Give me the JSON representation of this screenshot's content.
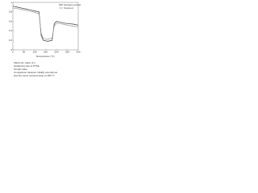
{
  "chart_data": {
    "type": "line",
    "x_label": "Temperature (°C)",
    "x": [
      0,
      20,
      40,
      60,
      80,
      100,
      120,
      130,
      140,
      160,
      180,
      190,
      200,
      220,
      240,
      260,
      280,
      300
    ],
    "series": [
      {
        "name": "Isotropic amorphous",
        "color": "#333333",
        "values": [
          0.92,
          0.9,
          0.88,
          0.86,
          0.84,
          0.82,
          0.8,
          0.3,
          0.2,
          0.18,
          0.2,
          0.55,
          0.6,
          0.58,
          0.56,
          0.55,
          0.54,
          0.52
        ]
      },
      {
        "name": "Textured",
        "color": "#999999",
        "values": [
          0.88,
          0.87,
          0.85,
          0.83,
          0.81,
          0.79,
          0.76,
          0.35,
          0.24,
          0.22,
          0.25,
          0.5,
          0.56,
          0.55,
          0.53,
          0.51,
          0.5,
          0.48
        ]
      }
    ],
    "xlim": [
      0,
      300
    ],
    "xticks": [
      0,
      50,
      100,
      150,
      200,
      250,
      300
    ],
    "ylim": [
      0,
      1
    ],
    "yticks": [
      0,
      0.2,
      0.4,
      0.6,
      0.8,
      1
    ],
    "legend": "upper right",
    "annotations": [
      "Maximum value of χ",
      "Hardening rate of PTFE",
      "Tensile state",
      "Comparison between initially amorphous",
      "and the same textured state at 180 °C"
    ]
  }
}
